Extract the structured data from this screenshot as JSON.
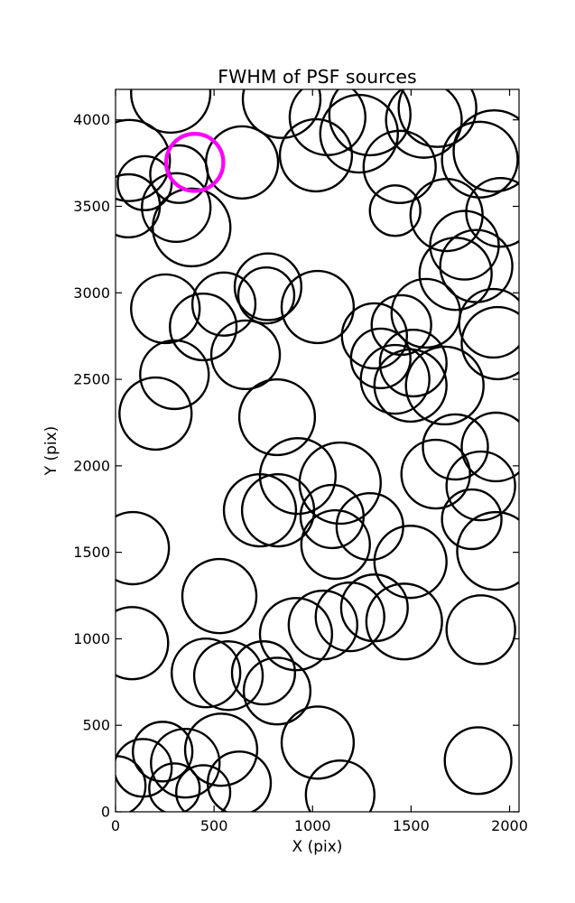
{
  "chart_data": {
    "type": "scatter",
    "title": "FWHM of PSF sources",
    "xlabel": "X (pix)",
    "ylabel": "Y (pix)",
    "xlim": [
      0,
      2048
    ],
    "ylim": [
      0,
      4176
    ],
    "xticks": [
      0,
      500,
      1000,
      1500,
      2000
    ],
    "yticks": [
      0,
      500,
      1000,
      1500,
      2000,
      2500,
      3000,
      3500,
      4000
    ],
    "grid": false,
    "legend": "none",
    "marker_style": {
      "shape": "open-circle",
      "fill": "none",
      "edge_color": "#000000",
      "edge_width": 2.4
    },
    "highlight_style": {
      "shape": "open-circle",
      "fill": "none",
      "edge_color": "#ff00ff",
      "edge_width": 4.3
    },
    "sources": [
      [
        280,
        4155,
        201
      ],
      [
        70,
        3765,
        206
      ],
      [
        148,
        3634,
        137
      ],
      [
        65,
        3503,
        160
      ],
      [
        308,
        3493,
        174
      ],
      [
        386,
        3378,
        197
      ],
      [
        322,
        3686,
        146
      ],
      [
        642,
        3754,
        183
      ],
      [
        843,
        4120,
        197
      ],
      [
        1017,
        3795,
        183
      ],
      [
        1076,
        4015,
        192
      ],
      [
        1236,
        3920,
        197
      ],
      [
        1291,
        4030,
        206
      ],
      [
        1442,
        3728,
        183
      ],
      [
        1565,
        4000,
        192
      ],
      [
        1634,
        4068,
        197
      ],
      [
        1849,
        3770,
        192
      ],
      [
        1922,
        3820,
        206
      ],
      [
        1954,
        3465,
        174
      ],
      [
        1680,
        3450,
        183
      ],
      [
        1419,
        3475,
        128
      ],
      [
        1771,
        3275,
        174
      ],
      [
        1831,
        3155,
        183
      ],
      [
        1726,
        3110,
        183
      ],
      [
        774,
        3035,
        169
      ],
      [
        765,
        2985,
        142
      ],
      [
        550,
        2935,
        160
      ],
      [
        253,
        2908,
        174
      ],
      [
        445,
        2803,
        169
      ],
      [
        1026,
        2918,
        183
      ],
      [
        1575,
        2882,
        174
      ],
      [
        1451,
        2814,
        151
      ],
      [
        1918,
        2824,
        174
      ],
      [
        1314,
        2751,
        165
      ],
      [
        299,
        2527,
        174
      ],
      [
        203,
        2302,
        183
      ],
      [
        660,
        2642,
        174
      ],
      [
        820,
        2281,
        192
      ],
      [
        1346,
        2621,
        151
      ],
      [
        1419,
        2500,
        174
      ],
      [
        1511,
        2594,
        169
      ],
      [
        1497,
        2464,
        183
      ],
      [
        1671,
        2464,
        197
      ],
      [
        1940,
        2709,
        183
      ],
      [
        1725,
        2109,
        165
      ],
      [
        1931,
        2109,
        174
      ],
      [
        733,
        1743,
        183
      ],
      [
        825,
        1743,
        183
      ],
      [
        925,
        1941,
        192
      ],
      [
        1140,
        1900,
        206
      ],
      [
        1099,
        1707,
        160
      ],
      [
        1117,
        1545,
        174
      ],
      [
        1291,
        1649,
        169
      ],
      [
        88,
        1524,
        183
      ],
      [
        1497,
        1445,
        183
      ],
      [
        1625,
        1952,
        174
      ],
      [
        1854,
        1884,
        174
      ],
      [
        1808,
        1691,
        151
      ],
      [
        1931,
        1508,
        197
      ],
      [
        84,
        975,
        183
      ],
      [
        527,
        1247,
        188
      ],
      [
        459,
        803,
        174
      ],
      [
        573,
        787,
        174
      ],
      [
        751,
        803,
        160
      ],
      [
        820,
        698,
        169
      ],
      [
        916,
        1027,
        183
      ],
      [
        1053,
        1080,
        174
      ],
      [
        1190,
        1127,
        174
      ],
      [
        1314,
        1179,
        169
      ],
      [
        1465,
        1100,
        192
      ],
      [
        1854,
        1053,
        174
      ],
      [
        139,
        254,
        146
      ],
      [
        239,
        348,
        151
      ],
      [
        354,
        281,
        174
      ],
      [
        536,
        359,
        183
      ],
      [
        445,
        113,
        137
      ],
      [
        299,
        134,
        128
      ],
      [
        628,
        166,
        160
      ],
      [
        1,
        150,
        151
      ],
      [
        1026,
        400,
        183
      ],
      [
        1140,
        98,
        174
      ],
      [
        1840,
        296,
        169
      ]
    ],
    "highlighted_source": [
      402,
      3754,
      145
    ]
  },
  "axes": {
    "frame_color": "#000000",
    "tick_direction": "in",
    "tick_sides": "all"
  }
}
